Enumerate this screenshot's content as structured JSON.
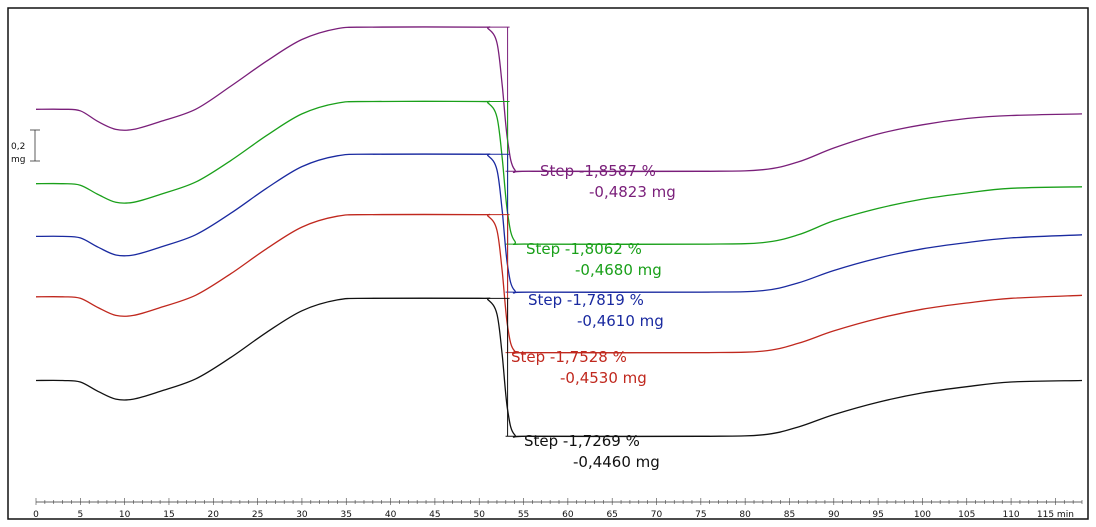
{
  "chart_data": {
    "type": "line",
    "x_unit_label": "min",
    "x_range": [
      0,
      118
    ],
    "x_ticks": [
      0,
      5,
      10,
      15,
      20,
      25,
      30,
      35,
      40,
      45,
      50,
      55,
      60,
      65,
      70,
      75,
      80,
      85,
      90,
      95,
      100,
      105,
      110,
      115
    ],
    "x_tick_labels": [
      "0",
      "5",
      "10",
      "15",
      "20",
      "25",
      "30",
      "35",
      "40",
      "45",
      "50",
      "55",
      "60",
      "65",
      "70",
      "75",
      "80",
      "85",
      "90",
      "95",
      "100",
      "105",
      "110",
      "115 min"
    ],
    "scale_bar": {
      "value_line1": "0,2",
      "value_line2": "mg",
      "mg": 0.2
    },
    "y_unit": "mg",
    "series": [
      {
        "color": "#7a1f7a",
        "baseline_mg": 3.05,
        "points": [
          [
            0,
            3.05
          ],
          [
            3,
            3.05
          ],
          [
            5,
            3.04
          ],
          [
            7,
            2.97
          ],
          [
            9,
            2.92
          ],
          [
            11,
            2.92
          ],
          [
            14,
            2.97
          ],
          [
            18,
            3.05
          ],
          [
            22,
            3.2
          ],
          [
            26,
            3.36
          ],
          [
            30,
            3.5
          ],
          [
            34,
            3.57
          ],
          [
            38,
            3.58
          ],
          [
            50,
            3.58
          ],
          [
            51,
            3.57
          ],
          [
            52,
            3.48
          ],
          [
            52.6,
            3.2
          ],
          [
            53.2,
            2.85
          ],
          [
            54,
            2.66
          ],
          [
            56,
            2.65
          ],
          [
            75,
            2.65
          ],
          [
            82,
            2.66
          ],
          [
            86,
            2.71
          ],
          [
            90,
            2.8
          ],
          [
            95,
            2.89
          ],
          [
            100,
            2.95
          ],
          [
            105,
            2.99
          ],
          [
            110,
            3.01
          ],
          [
            118,
            3.02
          ]
        ],
        "annotation": {
          "label": "Step",
          "percent": "-1,8587 %",
          "mass": "-0,4823 mg"
        }
      },
      {
        "color": "#1aa01a",
        "baseline_mg": 2.57,
        "points": [
          [
            0,
            2.57
          ],
          [
            3,
            2.57
          ],
          [
            5,
            2.56
          ],
          [
            7,
            2.5
          ],
          [
            9,
            2.45
          ],
          [
            11,
            2.45
          ],
          [
            14,
            2.5
          ],
          [
            18,
            2.58
          ],
          [
            22,
            2.72
          ],
          [
            26,
            2.88
          ],
          [
            30,
            3.02
          ],
          [
            34,
            3.09
          ],
          [
            38,
            3.1
          ],
          [
            50,
            3.1
          ],
          [
            51,
            3.09
          ],
          [
            52,
            3.0
          ],
          [
            52.6,
            2.73
          ],
          [
            53.2,
            2.38
          ],
          [
            54,
            2.2
          ],
          [
            56,
            2.18
          ],
          [
            75,
            2.18
          ],
          [
            82,
            2.19
          ],
          [
            86,
            2.24
          ],
          [
            90,
            2.33
          ],
          [
            95,
            2.41
          ],
          [
            100,
            2.47
          ],
          [
            105,
            2.51
          ],
          [
            110,
            2.54
          ],
          [
            118,
            2.55
          ]
        ],
        "annotation": {
          "label": "Step",
          "percent": "-1,8062 %",
          "mass": "-0,4680 mg"
        }
      },
      {
        "color": "#1a2aa0",
        "baseline_mg": 2.23,
        "points": [
          [
            0,
            2.23
          ],
          [
            3,
            2.23
          ],
          [
            5,
            2.22
          ],
          [
            7,
            2.16
          ],
          [
            9,
            2.11
          ],
          [
            11,
            2.11
          ],
          [
            14,
            2.16
          ],
          [
            18,
            2.24
          ],
          [
            22,
            2.38
          ],
          [
            26,
            2.54
          ],
          [
            30,
            2.68
          ],
          [
            34,
            2.75
          ],
          [
            38,
            2.76
          ],
          [
            50,
            2.76
          ],
          [
            51,
            2.75
          ],
          [
            52,
            2.66
          ],
          [
            52.6,
            2.39
          ],
          [
            53.2,
            2.04
          ],
          [
            54,
            1.88
          ],
          [
            56,
            1.87
          ],
          [
            75,
            1.87
          ],
          [
            82,
            1.88
          ],
          [
            86,
            1.93
          ],
          [
            90,
            2.01
          ],
          [
            95,
            2.09
          ],
          [
            100,
            2.15
          ],
          [
            105,
            2.19
          ],
          [
            110,
            2.22
          ],
          [
            118,
            2.24
          ]
        ],
        "annotation": {
          "label": "Step",
          "percent": "-1,7819 %",
          "mass": "-0,4610 mg"
        }
      },
      {
        "color": "#c0281e",
        "baseline_mg": 1.84,
        "points": [
          [
            0,
            1.84
          ],
          [
            3,
            1.84
          ],
          [
            5,
            1.83
          ],
          [
            7,
            1.77
          ],
          [
            9,
            1.72
          ],
          [
            11,
            1.72
          ],
          [
            14,
            1.77
          ],
          [
            18,
            1.85
          ],
          [
            22,
            1.99
          ],
          [
            26,
            2.15
          ],
          [
            30,
            2.29
          ],
          [
            34,
            2.36
          ],
          [
            38,
            2.37
          ],
          [
            50,
            2.37
          ],
          [
            51,
            2.36
          ],
          [
            52,
            2.27
          ],
          [
            52.6,
            2.0
          ],
          [
            53.2,
            1.65
          ],
          [
            54,
            1.49
          ],
          [
            56,
            1.48
          ],
          [
            75,
            1.48
          ],
          [
            82,
            1.49
          ],
          [
            86,
            1.54
          ],
          [
            90,
            1.62
          ],
          [
            95,
            1.7
          ],
          [
            100,
            1.76
          ],
          [
            105,
            1.8
          ],
          [
            110,
            1.83
          ],
          [
            118,
            1.85
          ]
        ],
        "annotation": {
          "label": "Step",
          "percent": "-1,7528 %",
          "mass": "-0,4530 mg"
        }
      },
      {
        "color": "#111111",
        "baseline_mg": 1.3,
        "points": [
          [
            0,
            1.3
          ],
          [
            3,
            1.3
          ],
          [
            5,
            1.29
          ],
          [
            7,
            1.23
          ],
          [
            9,
            1.18
          ],
          [
            11,
            1.18
          ],
          [
            14,
            1.23
          ],
          [
            18,
            1.31
          ],
          [
            22,
            1.45
          ],
          [
            26,
            1.61
          ],
          [
            30,
            1.75
          ],
          [
            34,
            1.82
          ],
          [
            38,
            1.83
          ],
          [
            50,
            1.83
          ],
          [
            51,
            1.82
          ],
          [
            52,
            1.73
          ],
          [
            52.6,
            1.46
          ],
          [
            53.2,
            1.11
          ],
          [
            54,
            0.95
          ],
          [
            56,
            0.94
          ],
          [
            75,
            0.94
          ],
          [
            82,
            0.95
          ],
          [
            86,
            1.0
          ],
          [
            90,
            1.08
          ],
          [
            95,
            1.16
          ],
          [
            100,
            1.22
          ],
          [
            105,
            1.26
          ],
          [
            110,
            1.29
          ],
          [
            118,
            1.3
          ]
        ],
        "annotation": {
          "label": "Step",
          "percent": "-1,7269 %",
          "mass": "-0,4460 mg"
        }
      }
    ],
    "grid": false,
    "legend": "none"
  }
}
